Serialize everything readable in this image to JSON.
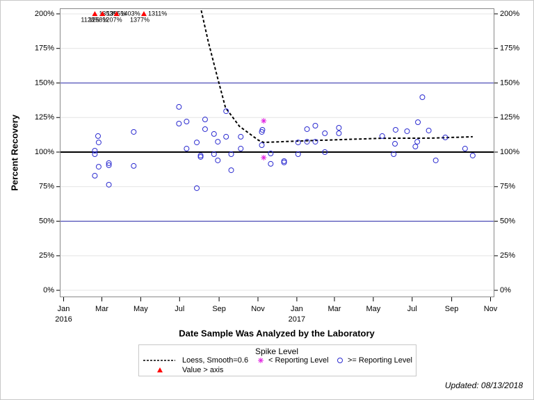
{
  "chart_data": {
    "type": "scatter",
    "xlabel": "Date Sample Was Analyzed by the Laboratory",
    "ylabel": "Percent Recovery",
    "footnote": "Updated: 08/13/2018",
    "legend_title": "Spike Level",
    "xlim": [
      "2015-12-26",
      "2017-11-07"
    ],
    "xticks": [
      {
        "value": "2016-01-01",
        "label": "Jan"
      },
      {
        "value": "2016-03-01",
        "label": "Mar"
      },
      {
        "value": "2016-05-01",
        "label": "May"
      },
      {
        "value": "2016-07-01",
        "label": "Jul"
      },
      {
        "value": "2016-09-01",
        "label": "Sep"
      },
      {
        "value": "2016-11-01",
        "label": "Nov"
      },
      {
        "value": "2017-01-01",
        "label": "Jan"
      },
      {
        "value": "2017-03-01",
        "label": "Mar"
      },
      {
        "value": "2017-05-01",
        "label": "May"
      },
      {
        "value": "2017-07-01",
        "label": "Jul"
      },
      {
        "value": "2017-09-01",
        "label": "Sep"
      },
      {
        "value": "2017-11-01",
        "label": "Nov"
      }
    ],
    "xyears": [
      {
        "value": "2016-01-01",
        "label": "2016"
      },
      {
        "value": "2017-01-01",
        "label": "2017"
      }
    ],
    "ylim": [
      -5,
      204
    ],
    "yticks": [
      {
        "value": 0,
        "label": "0%"
      },
      {
        "value": 25,
        "label": "25%"
      },
      {
        "value": 50,
        "label": "50%"
      },
      {
        "value": 75,
        "label": "75%"
      },
      {
        "value": 100,
        "label": "100%"
      },
      {
        "value": 125,
        "label": "125%"
      },
      {
        "value": 150,
        "label": "150%"
      },
      {
        "value": 175,
        "label": "175%"
      },
      {
        "value": 200,
        "label": "200%"
      }
    ],
    "grid": true,
    "reference_lines": [
      {
        "value": 100,
        "color": "#000000"
      },
      {
        "value": 50,
        "color": "#2a2aa8"
      },
      {
        "value": 150,
        "color": "#2a2aa8"
      }
    ],
    "series": [
      {
        "name": "Loess, Smooth=0.6",
        "marker": "line",
        "color": "#000000",
        "x": [
          "2016-08-04",
          "2016-08-15",
          "2016-08-29",
          "2016-09-11",
          "2016-10-03",
          "2016-11-02",
          "2016-11-10",
          "2017-01-04",
          "2017-03-10",
          "2017-05-15",
          "2017-07-31",
          "2017-10-04"
        ],
        "values": [
          202.5,
          179.9,
          154.8,
          132.2,
          118.6,
          108.5,
          107,
          108,
          109,
          110,
          110.1,
          111.1
        ]
      },
      {
        "name": "< Reporting Level",
        "marker": "star",
        "color": "#e020e0",
        "x": [
          "2016-11-10",
          "2016-11-10"
        ],
        "values": [
          122.6,
          96
        ]
      },
      {
        "name": ">= Reporting Level",
        "marker": "circle",
        "color": "#2a2ad0",
        "x": [
          "2016-02-19",
          "2016-02-19",
          "2016-02-19",
          "2016-02-24",
          "2016-02-25",
          "2016-02-25",
          "2016-03-12",
          "2016-03-12",
          "2016-03-12",
          "2016-04-20",
          "2016-04-20",
          "2016-06-30",
          "2016-06-30",
          "2016-07-12",
          "2016-07-12",
          "2016-07-28",
          "2016-07-28",
          "2016-08-03",
          "2016-08-03",
          "2016-08-10",
          "2016-08-10",
          "2016-08-24",
          "2016-08-24",
          "2016-08-30",
          "2016-08-30",
          "2016-09-12",
          "2016-09-12",
          "2016-09-20",
          "2016-09-20",
          "2016-10-05",
          "2016-10-05",
          "2016-11-07",
          "2016-11-07",
          "2016-11-08",
          "2016-11-21",
          "2016-11-21",
          "2016-12-12",
          "2016-12-12",
          "2017-01-03",
          "2017-01-03",
          "2017-01-17",
          "2017-01-17",
          "2017-01-30",
          "2017-01-30",
          "2017-02-14",
          "2017-02-14",
          "2017-03-08",
          "2017-03-08",
          "2017-05-15",
          "2017-06-02",
          "2017-06-04",
          "2017-06-05",
          "2017-06-23",
          "2017-07-06",
          "2017-07-09",
          "2017-07-10",
          "2017-07-17",
          "2017-07-27",
          "2017-08-07",
          "2017-08-22",
          "2017-09-22",
          "2017-10-04"
        ],
        "values": [
          82.9,
          98.5,
          101,
          111.6,
          107,
          89.4,
          92,
          90.5,
          76.4,
          114.6,
          90,
          132.7,
          120.6,
          122.1,
          102.5,
          107,
          73.9,
          97.5,
          96.5,
          123.6,
          116.6,
          113.1,
          98.5,
          107.5,
          94,
          129.6,
          111.1,
          98.5,
          86.9,
          111.1,
          102.5,
          105,
          114.6,
          116.1,
          99,
          91.5,
          93.5,
          92.5,
          107,
          98.5,
          116.6,
          107.5,
          119.1,
          107.5,
          113.6,
          100,
          117.6,
          113.6,
          111.6,
          98.5,
          106,
          116.1,
          115.1,
          104,
          107.5,
          121.6,
          139.7,
          115.6,
          94,
          110.6,
          102.5,
          97.5
        ]
      },
      {
        "name": "Value > axis",
        "marker": "triangle",
        "color": "#ff0000",
        "x": [
          "2016-02-19",
          "2016-03-02",
          "2016-03-24",
          "2016-05-06",
          "2016-02-19",
          "2016-03-02",
          "2016-03-24",
          "2016-05-06"
        ],
        "values": [
          1353,
          1395,
          1403,
          1311,
          1128,
          1258,
          1207,
          1377
        ],
        "value_labels": [
          "1353%",
          "1395%",
          "1403%",
          "1311%",
          "1128%",
          "1258%",
          "1207%",
          "1377%"
        ]
      }
    ]
  }
}
